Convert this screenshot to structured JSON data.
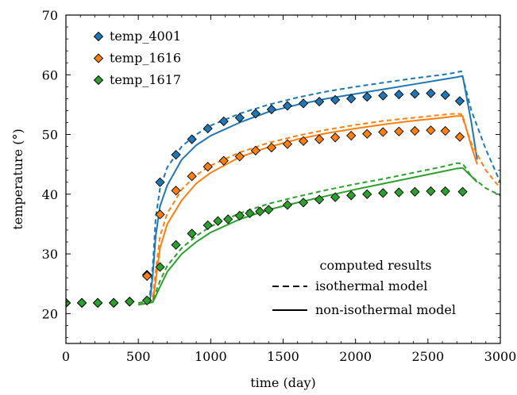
{
  "chart_data": {
    "type": "line",
    "xlabel": "time (day)",
    "ylabel": "temperature (°)",
    "xlim": [
      0,
      3000
    ],
    "ylim": [
      15,
      70
    ],
    "xticks": [
      0,
      500,
      1000,
      1500,
      2000,
      2500,
      3000
    ],
    "yticks": [
      20,
      30,
      40,
      50,
      60,
      70
    ],
    "grid": false,
    "legend_markers": {
      "placement": "top-left",
      "entries": [
        "temp_4001",
        "temp_1616",
        "temp_1617"
      ]
    },
    "legend_lines": {
      "placement": "bottom-right",
      "title": "computed results",
      "entries": [
        {
          "label": "isothermal model",
          "style": "dashed"
        },
        {
          "label": "non-isothermal model",
          "style": "solid"
        }
      ]
    },
    "colors": {
      "temp_4001": "#1f77b4",
      "temp_1616": "#ff7f0e",
      "temp_1617": "#2ca02c"
    },
    "series": [
      {
        "name": "temp_4001",
        "measured": {
          "x": [
            0,
            110,
            220,
            330,
            440,
            560,
            650,
            760,
            870,
            980,
            1090,
            1200,
            1310,
            1420,
            1530,
            1640,
            1750,
            1860,
            1970,
            2080,
            2190,
            2300,
            2410,
            2520,
            2620,
            2720
          ],
          "y": [
            21.8,
            21.8,
            21.8,
            21.8,
            22.0,
            26.5,
            42.0,
            46.6,
            49.2,
            51.0,
            52.2,
            52.8,
            53.5,
            54.2,
            54.8,
            55.2,
            55.5,
            55.8,
            56.0,
            56.3,
            56.5,
            56.7,
            56.8,
            56.9,
            56.6,
            55.6
          ]
        },
        "isothermal": {
          "x": [
            500,
            560,
            580,
            600,
            620,
            650,
            700,
            800,
            900,
            1000,
            1200,
            1400,
            1600,
            1800,
            2000,
            2200,
            2400,
            2600,
            2700,
            2730,
            2800,
            2900,
            3000
          ],
          "y": [
            21.8,
            22.0,
            23.0,
            28.0,
            36.0,
            41.0,
            44.5,
            48.0,
            50.0,
            51.5,
            53.5,
            55.0,
            56.2,
            57.2,
            58.0,
            58.7,
            59.4,
            60.0,
            60.4,
            60.6,
            54.0,
            47.5,
            42.0
          ]
        },
        "non_isothermal": {
          "x": [
            500,
            560,
            580,
            600,
            620,
            650,
            700,
            800,
            900,
            1000,
            1200,
            1400,
            1600,
            1800,
            2000,
            2200,
            2400,
            2600,
            2700,
            2740,
            2800,
            2840
          ],
          "y": [
            21.5,
            21.7,
            22.0,
            26.5,
            33.0,
            38.0,
            41.5,
            45.8,
            48.2,
            49.8,
            52.0,
            53.8,
            55.0,
            56.0,
            56.8,
            57.6,
            58.4,
            59.2,
            59.6,
            59.8,
            52.0,
            45.8
          ]
        }
      },
      {
        "name": "temp_1616",
        "measured": {
          "x": [
            0,
            110,
            220,
            330,
            440,
            560,
            650,
            760,
            870,
            980,
            1090,
            1200,
            1310,
            1420,
            1530,
            1640,
            1750,
            1860,
            1970,
            2080,
            2190,
            2300,
            2410,
            2520,
            2620,
            2720
          ],
          "y": [
            21.8,
            21.8,
            21.8,
            21.8,
            22.0,
            26.3,
            36.6,
            40.6,
            43.0,
            44.6,
            45.6,
            46.3,
            47.3,
            47.8,
            48.4,
            48.9,
            49.2,
            49.5,
            49.8,
            50.1,
            50.4,
            50.5,
            50.6,
            50.7,
            50.6,
            49.6
          ]
        },
        "isothermal": {
          "x": [
            500,
            560,
            600,
            620,
            650,
            700,
            800,
            900,
            1000,
            1200,
            1400,
            1600,
            1800,
            2000,
            2200,
            2400,
            2600,
            2700,
            2730,
            2800,
            2900,
            3000
          ],
          "y": [
            21.8,
            22.0,
            23.0,
            27.0,
            33.0,
            36.8,
            40.8,
            43.2,
            44.8,
            47.0,
            48.6,
            49.8,
            50.8,
            51.6,
            52.3,
            52.8,
            53.3,
            53.5,
            53.4,
            48.5,
            44.0,
            41.0
          ]
        },
        "non_isothermal": {
          "x": [
            500,
            560,
            600,
            620,
            650,
            700,
            800,
            900,
            1000,
            1200,
            1400,
            1600,
            1800,
            2000,
            2200,
            2400,
            2600,
            2700,
            2740,
            2800,
            2840
          ],
          "y": [
            21.5,
            21.7,
            22.0,
            25.5,
            31.0,
            35.0,
            39.0,
            41.8,
            43.6,
            46.2,
            47.9,
            49.2,
            50.2,
            51.0,
            51.7,
            52.3,
            52.8,
            53.1,
            53.1,
            48.0,
            45.0
          ]
        }
      },
      {
        "name": "temp_1617",
        "measured": {
          "x": [
            0,
            110,
            220,
            330,
            440,
            560,
            650,
            760,
            870,
            980,
            1050,
            1120,
            1200,
            1270,
            1340,
            1400,
            1530,
            1640,
            1750,
            1860,
            1970,
            2080,
            2190,
            2300,
            2410,
            2520,
            2620,
            2740
          ],
          "y": [
            21.8,
            21.8,
            21.8,
            21.8,
            22.0,
            22.2,
            27.8,
            31.5,
            33.4,
            34.8,
            35.5,
            35.8,
            36.4,
            36.8,
            37.1,
            37.4,
            38.2,
            38.6,
            39.1,
            39.5,
            39.8,
            40.0,
            40.2,
            40.3,
            40.4,
            40.5,
            40.5,
            40.4
          ]
        },
        "isothermal": {
          "x": [
            500,
            560,
            600,
            650,
            700,
            800,
            900,
            1000,
            1200,
            1400,
            1600,
            1800,
            2000,
            2200,
            2400,
            2600,
            2700,
            2740,
            2800,
            2900,
            3000
          ],
          "y": [
            21.8,
            22.0,
            22.2,
            25.5,
            28.0,
            31.0,
            33.0,
            34.6,
            36.8,
            38.4,
            39.6,
            40.7,
            41.7,
            42.6,
            43.6,
            44.6,
            45.2,
            45.1,
            43.0,
            41.0,
            39.8
          ]
        },
        "non_isothermal": {
          "x": [
            500,
            560,
            600,
            650,
            700,
            800,
            900,
            1000,
            1200,
            1400,
            1600,
            1800,
            2000,
            2200,
            2400,
            2600,
            2700,
            2740,
            2800,
            2840
          ],
          "y": [
            21.5,
            21.7,
            21.9,
            24.5,
            27.0,
            30.0,
            32.0,
            33.6,
            35.8,
            37.4,
            38.6,
            39.7,
            40.8,
            41.8,
            42.8,
            43.8,
            44.3,
            44.4,
            43.0,
            42.0
          ]
        }
      }
    ]
  }
}
